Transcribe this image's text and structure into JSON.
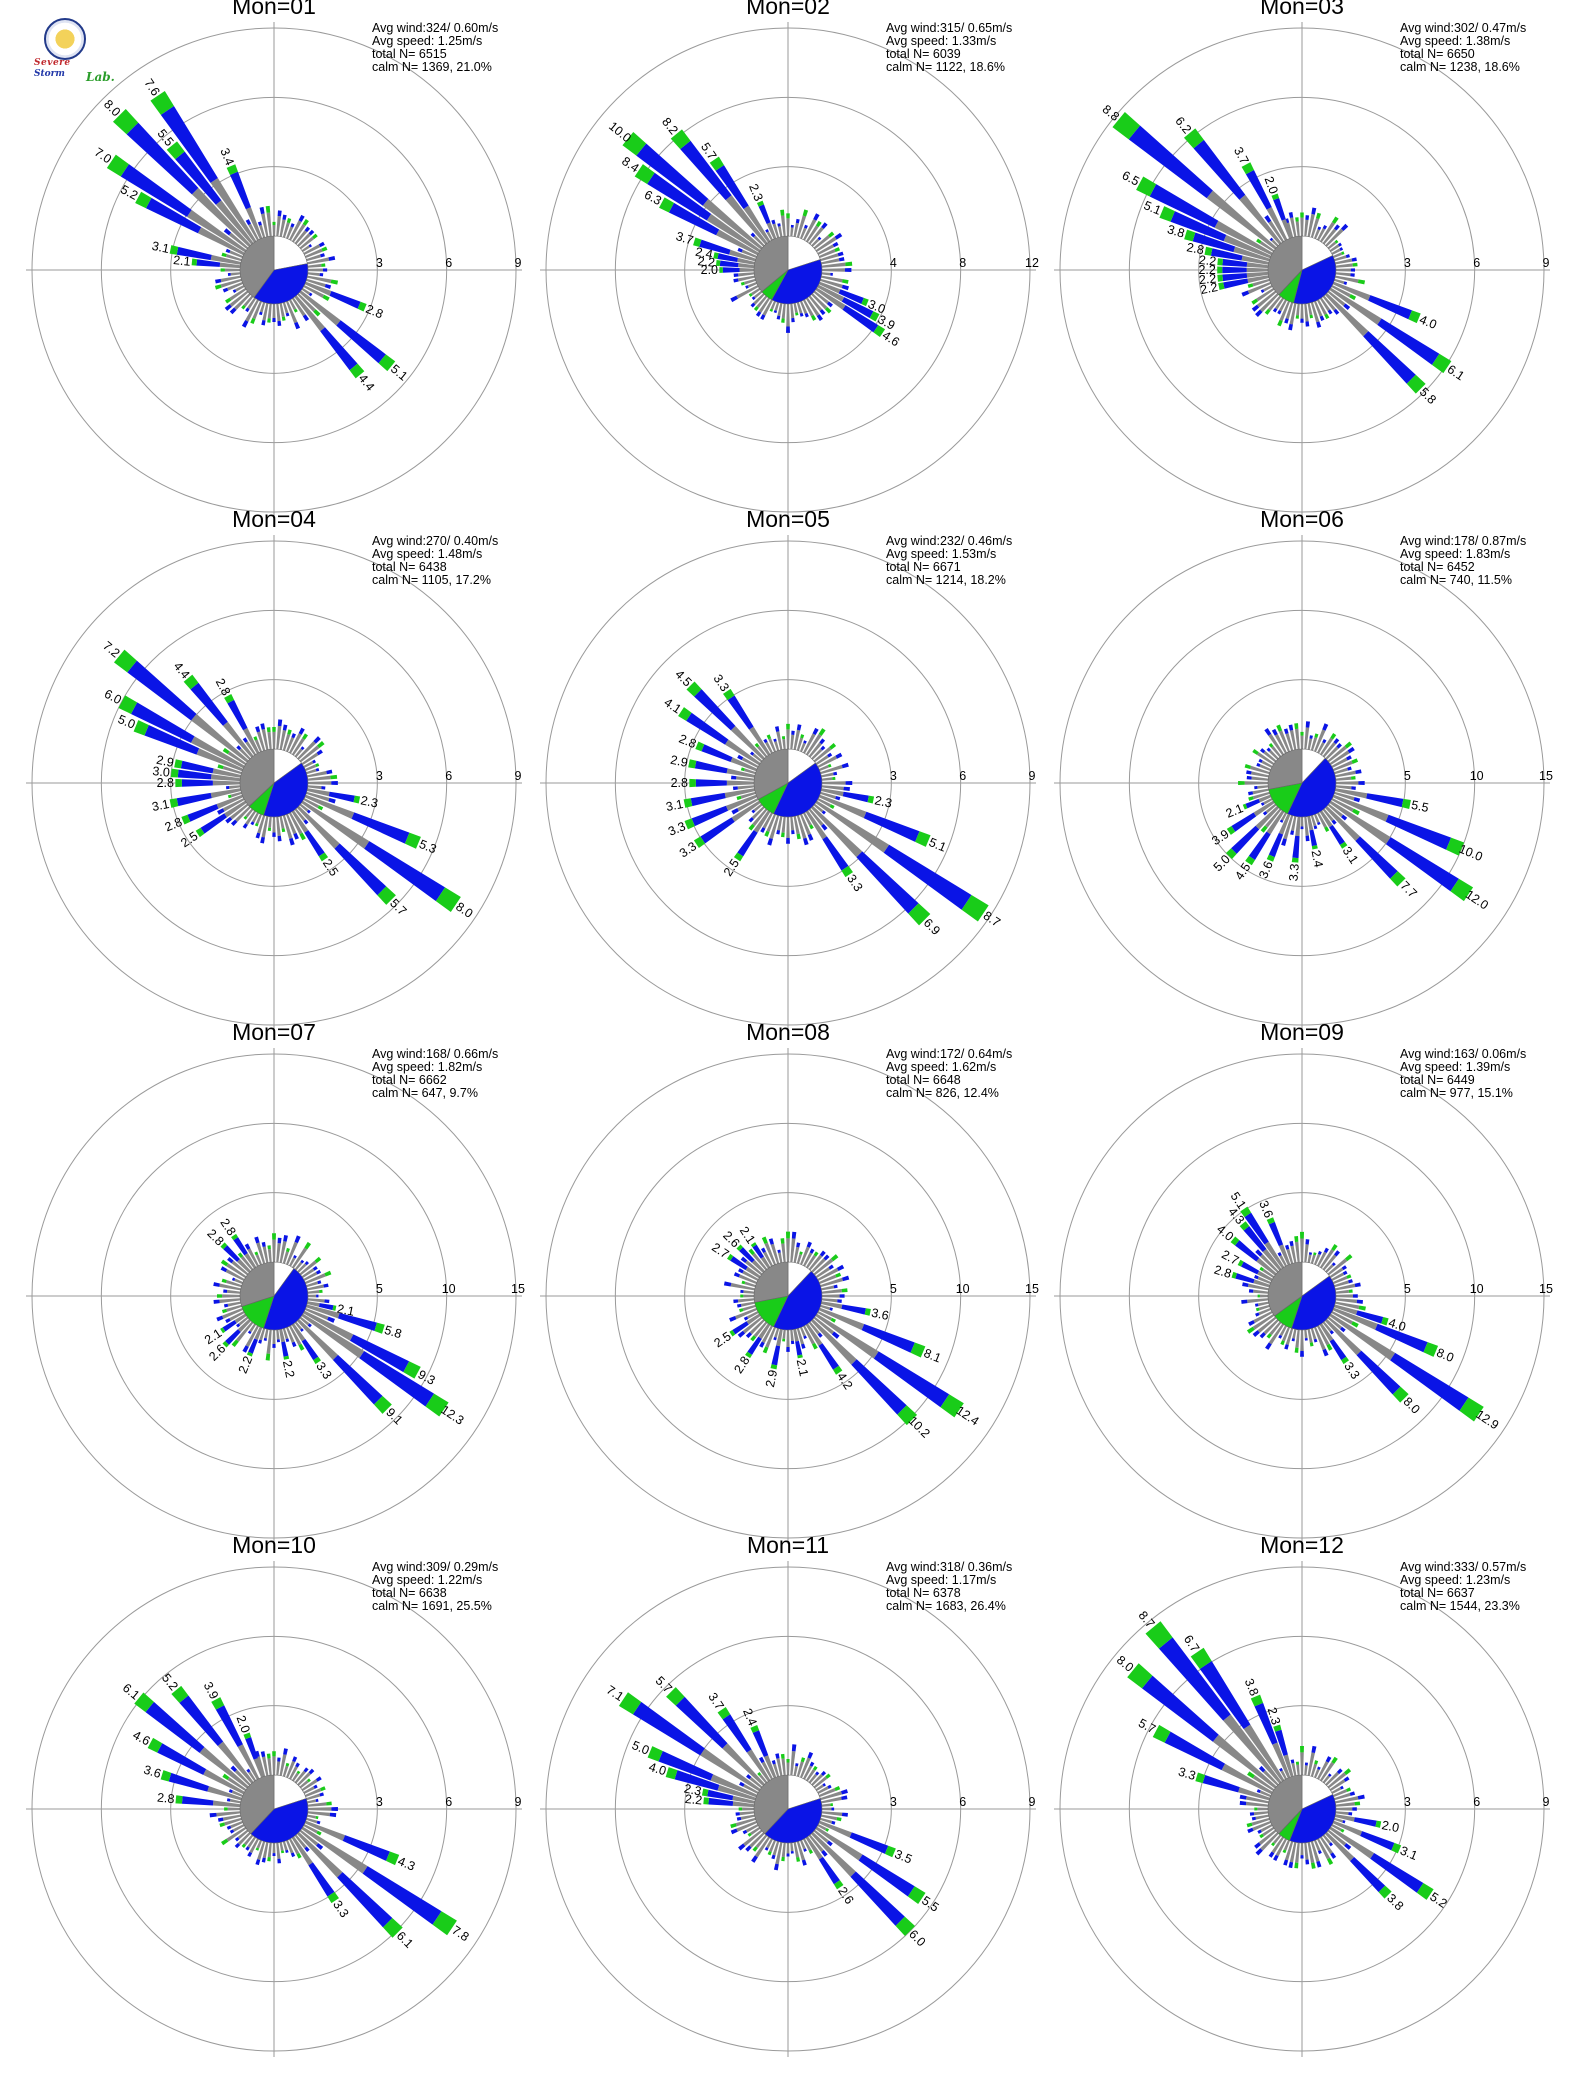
{
  "logo": {
    "line1": "Severe",
    "line2": "Storm",
    "line3": "Lab."
  },
  "colors": {
    "high": "#19cc19",
    "mid": "#0a14e6",
    "low": "#888888",
    "extreme": "#ff7f1e",
    "ring": "#9a9a9a"
  },
  "chart_data": [
    {
      "type": "wind-rose",
      "title": "Mon=01",
      "stats": [
        "Avg wind:324/ 0.60m/s",
        "Avg speed: 1.25m/s",
        "total N=      6515",
        "calm N=   1369,  21.0%"
      ],
      "ring_labels": [
        "3",
        "6",
        "9"
      ],
      "rmax": 9,
      "calm_pie": [
        0.22,
        0.38,
        0.0,
        0.4
      ],
      "petals": [
        {
          "dir": 337.5,
          "value": 3.4,
          "label": "3.4"
        },
        {
          "dir": 320.625,
          "value": 5.5,
          "label": "5.5"
        },
        {
          "dir": 326.25,
          "value": 7.6,
          "label": "7.6"
        },
        {
          "dir": 315,
          "value": 8.0,
          "label": "8.0"
        },
        {
          "dir": 303.75,
          "value": 7.0,
          "label": "7.0"
        },
        {
          "dir": 298.125,
          "value": 5.2,
          "label": "5.2"
        },
        {
          "dir": 281.25,
          "value": 3.1,
          "label": "3.1"
        },
        {
          "dir": 275.625,
          "value": 2.1,
          "label": "2.1"
        },
        {
          "dir": 112.5,
          "value": 2.8,
          "label": "2.8"
        },
        {
          "dir": 129.375,
          "value": 5.1,
          "label": "5.1"
        },
        {
          "dir": 140.625,
          "value": 4.4,
          "label": "4.4"
        }
      ]
    },
    {
      "type": "wind-rose",
      "title": "Mon=02",
      "stats": [
        "Avg wind:315/ 0.65m/s",
        "Avg speed: 1.33m/s",
        "total N=      6039",
        "calm N=   1122,  18.6%"
      ],
      "ring_labels": [
        "4",
        "8",
        "12"
      ],
      "rmax": 12,
      "calm_pie": [
        0.2,
        0.38,
        0.06,
        0.36
      ],
      "petals": [
        {
          "dir": 337.5,
          "value": 2.3,
          "label": "2.3"
        },
        {
          "dir": 326.25,
          "value": 5.7,
          "label": "5.7"
        },
        {
          "dir": 320.625,
          "value": 8.2,
          "label": "8.2"
        },
        {
          "dir": 309.375,
          "value": 10.0,
          "label": "10.0"
        },
        {
          "dir": 303.75,
          "value": 8.4,
          "label": "8.4"
        },
        {
          "dir": 298.125,
          "value": 6.3,
          "label": "6.3"
        },
        {
          "dir": 287.0,
          "value": 3.7,
          "label": "3.7"
        },
        {
          "dir": 281.25,
          "value": 2.4,
          "label": "2.4"
        },
        {
          "dir": 275.625,
          "value": 2.2,
          "label": "2.2"
        },
        {
          "dir": 270,
          "value": 2.0,
          "label": "2.0"
        },
        {
          "dir": 112.5,
          "value": 3.0,
          "label": "3.0"
        },
        {
          "dir": 118.125,
          "value": 3.9,
          "label": "3.9"
        },
        {
          "dir": 123.75,
          "value": 4.6,
          "label": "4.6"
        }
      ]
    },
    {
      "type": "wind-rose",
      "title": "Mon=03",
      "stats": [
        "Avg wind:302/ 0.47m/s",
        "Avg speed: 1.38m/s",
        "total N=      6650",
        "calm N=   1238,  18.6%"
      ],
      "ring_labels": [
        "3",
        "6",
        "9"
      ],
      "rmax": 9,
      "calm_pie": [
        0.18,
        0.36,
        0.08,
        0.38
      ],
      "petals": [
        {
          "dir": 340,
          "value": 2.0,
          "label": "2.0"
        },
        {
          "dir": 332,
          "value": 3.7,
          "label": "3.7"
        },
        {
          "dir": 320.625,
          "value": 6.2,
          "label": "6.2"
        },
        {
          "dir": 309.375,
          "value": 8.8,
          "label": "8.8"
        },
        {
          "dir": 298.125,
          "value": 6.5,
          "label": "6.5"
        },
        {
          "dir": 292.5,
          "value": 5.1,
          "label": "5.1"
        },
        {
          "dir": 287,
          "value": 3.8,
          "label": "3.8"
        },
        {
          "dir": 281.25,
          "value": 2.8,
          "label": "2.8"
        },
        {
          "dir": 275.625,
          "value": 2.2,
          "label": "2.2"
        },
        {
          "dir": 270,
          "value": 2.2,
          "label": "2.2"
        },
        {
          "dir": 264.375,
          "value": 2.2,
          "label": "2.2"
        },
        {
          "dir": 258.75,
          "value": 2.2,
          "label": "2.2"
        },
        {
          "dir": 112.5,
          "value": 4.0,
          "label": "4.0"
        },
        {
          "dir": 123.75,
          "value": 6.1,
          "label": "6.1"
        },
        {
          "dir": 135,
          "value": 5.8,
          "label": "5.8"
        }
      ]
    },
    {
      "type": "wind-rose",
      "title": "Mon=04",
      "stats": [
        "Avg wind:270/ 0.40m/s",
        "Avg speed: 1.48m/s",
        "total N=      6438",
        "calm N=   1105,  17.2%"
      ],
      "ring_labels": [
        "3",
        "6",
        "9"
      ],
      "rmax": 9,
      "calm_pie": [
        0.15,
        0.4,
        0.08,
        0.37
      ],
      "petals": [
        {
          "dir": 332,
          "value": 2.8,
          "label": "2.8"
        },
        {
          "dir": 320.625,
          "value": 4.4,
          "label": "4.4"
        },
        {
          "dir": 309.375,
          "value": 7.2,
          "label": "7.2"
        },
        {
          "dir": 298.125,
          "value": 6.0,
          "label": "6.0"
        },
        {
          "dir": 292.5,
          "value": 5.0,
          "label": "5.0"
        },
        {
          "dir": 281.25,
          "value": 2.9,
          "label": "2.9"
        },
        {
          "dir": 275.625,
          "value": 3.0,
          "label": "3.0"
        },
        {
          "dir": 270,
          "value": 2.8,
          "label": "2.8"
        },
        {
          "dir": 258.75,
          "value": 3.1,
          "label": "3.1"
        },
        {
          "dir": 247.5,
          "value": 2.8,
          "label": "2.8"
        },
        {
          "dir": 236.25,
          "value": 2.5,
          "label": "2.5"
        },
        {
          "dir": 101.25,
          "value": 2.3,
          "label": "2.3"
        },
        {
          "dir": 112.5,
          "value": 5.3,
          "label": "5.3"
        },
        {
          "dir": 123.75,
          "value": 8.0,
          "label": "8.0"
        },
        {
          "dir": 135,
          "value": 5.7,
          "label": "5.7"
        },
        {
          "dir": 146.25,
          "value": 2.5,
          "label": "2.5"
        }
      ]
    },
    {
      "type": "wind-rose",
      "title": "Mon=05",
      "stats": [
        "Avg wind:232/ 0.46m/s",
        "Avg speed: 1.53m/s",
        "total N=      6671",
        "calm N=   1214,  18.2%"
      ],
      "ring_labels": [
        "3",
        "6",
        "9"
      ],
      "rmax": 9,
      "calm_pie": [
        0.15,
        0.42,
        0.1,
        0.33
      ],
      "petals": [
        {
          "dir": 326.25,
          "value": 3.3,
          "label": "3.3"
        },
        {
          "dir": 315,
          "value": 4.5,
          "label": "4.5"
        },
        {
          "dir": 303.75,
          "value": 4.1,
          "label": "4.1"
        },
        {
          "dir": 292.5,
          "value": 2.8,
          "label": "2.8"
        },
        {
          "dir": 281.25,
          "value": 2.9,
          "label": "2.9"
        },
        {
          "dir": 270,
          "value": 2.8,
          "label": "2.8"
        },
        {
          "dir": 258.75,
          "value": 3.1,
          "label": "3.1"
        },
        {
          "dir": 247.5,
          "value": 3.3,
          "label": "3.3"
        },
        {
          "dir": 236.25,
          "value": 3.3,
          "label": "3.3"
        },
        {
          "dir": 213.75,
          "value": 2.5,
          "label": "2.5"
        },
        {
          "dir": 101.25,
          "value": 2.3,
          "label": "2.3"
        },
        {
          "dir": 112.5,
          "value": 5.1,
          "label": "5.1"
        },
        {
          "dir": 123.75,
          "value": 8.7,
          "label": "8.7"
        },
        {
          "dir": 135,
          "value": 6.9,
          "label": "6.9"
        },
        {
          "dir": 146.25,
          "value": 3.3,
          "label": "3.3"
        }
      ]
    },
    {
      "type": "wind-rose",
      "title": "Mon=06",
      "stats": [
        "Avg wind:178/ 0.87m/s",
        "Avg speed: 1.83m/s",
        "total N=      6452",
        "calm N=    740,  11.5%"
      ],
      "ring_labels": [
        "5",
        "10",
        "15"
      ],
      "rmax": 15,
      "calm_pie": [
        0.12,
        0.45,
        0.15,
        0.28
      ],
      "petals": [
        {
          "dir": 101.25,
          "value": 5.5,
          "label": "5.5"
        },
        {
          "dir": 112.5,
          "value": 10.0,
          "label": "10.0"
        },
        {
          "dir": 123.75,
          "value": 12.0,
          "label": "12.0"
        },
        {
          "dir": 135,
          "value": 7.7,
          "label": "7.7"
        },
        {
          "dir": 146.25,
          "value": 3.1,
          "label": "3.1"
        },
        {
          "dir": 168.75,
          "value": 2.4,
          "label": "2.4"
        },
        {
          "dir": 185,
          "value": 3.3,
          "label": "3.3"
        },
        {
          "dir": 202.5,
          "value": 3.6,
          "label": "3.6"
        },
        {
          "dir": 213.75,
          "value": 4.5,
          "label": "4.5"
        },
        {
          "dir": 225,
          "value": 5.0,
          "label": "5.0"
        },
        {
          "dir": 236.25,
          "value": 3.9,
          "label": "3.9"
        },
        {
          "dir": 247.5,
          "value": 2.1,
          "label": "2.1"
        }
      ]
    },
    {
      "type": "wind-rose",
      "title": "Mon=07",
      "stats": [
        "Avg wind:168/ 0.66m/s",
        "Avg speed: 1.82m/s",
        "total N=      6662",
        "calm N=    647,   9.7%"
      ],
      "ring_labels": [
        "5",
        "10",
        "15"
      ],
      "rmax": 15,
      "calm_pie": [
        0.1,
        0.45,
        0.15,
        0.3
      ],
      "petals": [
        {
          "dir": 326.25,
          "value": 2.8,
          "label": "2.8"
        },
        {
          "dir": 315,
          "value": 2.8,
          "label": "2.8"
        },
        {
          "dir": 101.25,
          "value": 2.1,
          "label": "2.1"
        },
        {
          "dir": 106.875,
          "value": 5.8,
          "label": "5.8"
        },
        {
          "dir": 118.125,
          "value": 9.3,
          "label": "9.3"
        },
        {
          "dir": 123.75,
          "value": 12.3,
          "label": "12.3"
        },
        {
          "dir": 135,
          "value": 9.1,
          "label": "9.1"
        },
        {
          "dir": 146.25,
          "value": 3.3,
          "label": "3.3"
        },
        {
          "dir": 168.75,
          "value": 2.2,
          "label": "2.2"
        },
        {
          "dir": 202.5,
          "value": 2.2,
          "label": "2.2"
        },
        {
          "dir": 225,
          "value": 2.6,
          "label": "2.6"
        },
        {
          "dir": 236.25,
          "value": 2.1,
          "label": "2.1"
        }
      ]
    },
    {
      "type": "wind-rose",
      "title": "Mon=08",
      "stats": [
        "Avg wind:172/ 0.64m/s",
        "Avg speed: 1.62m/s",
        "total N=      6648",
        "calm N=    826,  12.4%"
      ],
      "ring_labels": [
        "5",
        "10",
        "15"
      ],
      "rmax": 15,
      "calm_pie": [
        0.12,
        0.45,
        0.15,
        0.28
      ],
      "petals": [
        {
          "dir": 326.25,
          "value": 2.1,
          "label": "2.1"
        },
        {
          "dir": 315,
          "value": 2.6,
          "label": "2.6"
        },
        {
          "dir": 303.75,
          "value": 2.7,
          "label": "2.7"
        },
        {
          "dir": 101.25,
          "value": 3.6,
          "label": "3.6"
        },
        {
          "dir": 112.5,
          "value": 8.1,
          "label": "8.1"
        },
        {
          "dir": 123.75,
          "value": 12.4,
          "label": "12.4"
        },
        {
          "dir": 135,
          "value": 10.2,
          "label": "10.2"
        },
        {
          "dir": 146.25,
          "value": 4.2,
          "label": "4.2"
        },
        {
          "dir": 168.75,
          "value": 2.1,
          "label": "2.1"
        },
        {
          "dir": 191.25,
          "value": 2.9,
          "label": "2.9"
        },
        {
          "dir": 213.75,
          "value": 2.8,
          "label": "2.8"
        },
        {
          "dir": 236.25,
          "value": 2.5,
          "label": "2.5"
        }
      ]
    },
    {
      "type": "wind-rose",
      "title": "Mon=09",
      "stats": [
        "Avg wind:163/ 0.06m/s",
        "Avg speed: 1.39m/s",
        "total N=      6449",
        "calm N=    977,  15.1%"
      ],
      "ring_labels": [
        "5",
        "10",
        "15"
      ],
      "rmax": 15,
      "calm_pie": [
        0.15,
        0.4,
        0.1,
        0.35
      ],
      "petals": [
        {
          "dir": 337.5,
          "value": 3.6,
          "label": "3.6"
        },
        {
          "dir": 326.25,
          "value": 5.1,
          "label": "5.1"
        },
        {
          "dir": 320.625,
          "value": 4.3,
          "label": "4.3"
        },
        {
          "dir": 309.375,
          "value": 4.0,
          "label": "4.0"
        },
        {
          "dir": 298.125,
          "value": 2.7,
          "label": "2.7"
        },
        {
          "dir": 287,
          "value": 2.8,
          "label": "2.8"
        },
        {
          "dir": 106.875,
          "value": 4.0,
          "label": "4.0"
        },
        {
          "dir": 112.5,
          "value": 8.0,
          "label": "8.0"
        },
        {
          "dir": 123.75,
          "value": 12.9,
          "label": "12.9"
        },
        {
          "dir": 135,
          "value": 8.0,
          "label": "8.0"
        },
        {
          "dir": 146.25,
          "value": 3.3,
          "label": "3.3"
        }
      ]
    },
    {
      "type": "wind-rose",
      "title": "Mon=10",
      "stats": [
        "Avg wind:309/ 0.29m/s",
        "Avg speed: 1.22m/s",
        "total N=      6638",
        "calm N=   1691,  25.5%"
      ],
      "ring_labels": [
        "3",
        "6",
        "9"
      ],
      "rmax": 9,
      "calm_pie": [
        0.2,
        0.42,
        0.0,
        0.38
      ],
      "petals": [
        {
          "dir": 340,
          "value": 2.0,
          "label": "2.0"
        },
        {
          "dir": 332,
          "value": 3.9,
          "label": "3.9"
        },
        {
          "dir": 320.625,
          "value": 5.2,
          "label": "5.2"
        },
        {
          "dir": 309.375,
          "value": 6.1,
          "label": "6.1"
        },
        {
          "dir": 298.125,
          "value": 4.6,
          "label": "4.6"
        },
        {
          "dir": 287,
          "value": 3.6,
          "label": "3.6"
        },
        {
          "dir": 275.625,
          "value": 2.8,
          "label": "2.8"
        },
        {
          "dir": 112.5,
          "value": 4.3,
          "label": "4.3"
        },
        {
          "dir": 123.75,
          "value": 7.8,
          "label": "7.8"
        },
        {
          "dir": 135,
          "value": 6.1,
          "label": "6.1"
        },
        {
          "dir": 146.25,
          "value": 3.3,
          "label": "3.3"
        }
      ]
    },
    {
      "type": "wind-rose",
      "title": "Mon=11",
      "stats": [
        "Avg wind:318/ 0.36m/s",
        "Avg speed: 1.17m/s",
        "total N=      6378",
        "calm N=   1683,  26.4%"
      ],
      "ring_labels": [
        "3",
        "6",
        "9"
      ],
      "rmax": 9,
      "calm_pie": [
        0.2,
        0.42,
        0.0,
        0.38
      ],
      "petals": [
        {
          "dir": 337.5,
          "value": 2.4,
          "label": "2.4"
        },
        {
          "dir": 326.25,
          "value": 3.7,
          "label": "3.7"
        },
        {
          "dir": 315,
          "value": 5.7,
          "label": "5.7"
        },
        {
          "dir": 303.75,
          "value": 7.1,
          "label": "7.1"
        },
        {
          "dir": 292.5,
          "value": 5.0,
          "label": "5.0"
        },
        {
          "dir": 287,
          "value": 4.0,
          "label": "4.0"
        },
        {
          "dir": 281.25,
          "value": 2.3,
          "label": "2.3"
        },
        {
          "dir": 275.625,
          "value": 2.2,
          "label": "2.2"
        },
        {
          "dir": 112.5,
          "value": 3.5,
          "label": "3.5"
        },
        {
          "dir": 123.75,
          "value": 5.5,
          "label": "5.5"
        },
        {
          "dir": 135,
          "value": 6.0,
          "label": "6.0"
        },
        {
          "dir": 146.25,
          "value": 2.6,
          "label": "2.6"
        }
      ]
    },
    {
      "type": "wind-rose",
      "title": "Mon=12",
      "stats": [
        "Avg wind:333/ 0.57m/s",
        "Avg speed: 1.23m/s",
        "total N=      6637",
        "calm N=   1544,  23.3%"
      ],
      "ring_labels": [
        "3",
        "6",
        "9"
      ],
      "rmax": 9,
      "calm_pie": [
        0.18,
        0.38,
        0.06,
        0.38
      ],
      "petals": [
        {
          "dir": 343.125,
          "value": 2.3,
          "label": "2.3"
        },
        {
          "dir": 337.5,
          "value": 3.8,
          "label": "3.8"
        },
        {
          "dir": 326.25,
          "value": 6.7,
          "label": "6.7"
        },
        {
          "dir": 320.625,
          "value": 8.7,
          "label": "8.7"
        },
        {
          "dir": 309.375,
          "value": 8.0,
          "label": "8.0"
        },
        {
          "dir": 298.125,
          "value": 5.7,
          "label": "5.7"
        },
        {
          "dir": 287,
          "value": 3.3,
          "label": "3.3"
        },
        {
          "dir": 101.25,
          "value": 2.0,
          "label": "2.0"
        },
        {
          "dir": 112.5,
          "value": 3.1,
          "label": "3.1"
        },
        {
          "dir": 123.75,
          "value": 5.2,
          "label": "5.2"
        },
        {
          "dir": 135,
          "value": 3.8,
          "label": "3.8"
        }
      ]
    }
  ]
}
